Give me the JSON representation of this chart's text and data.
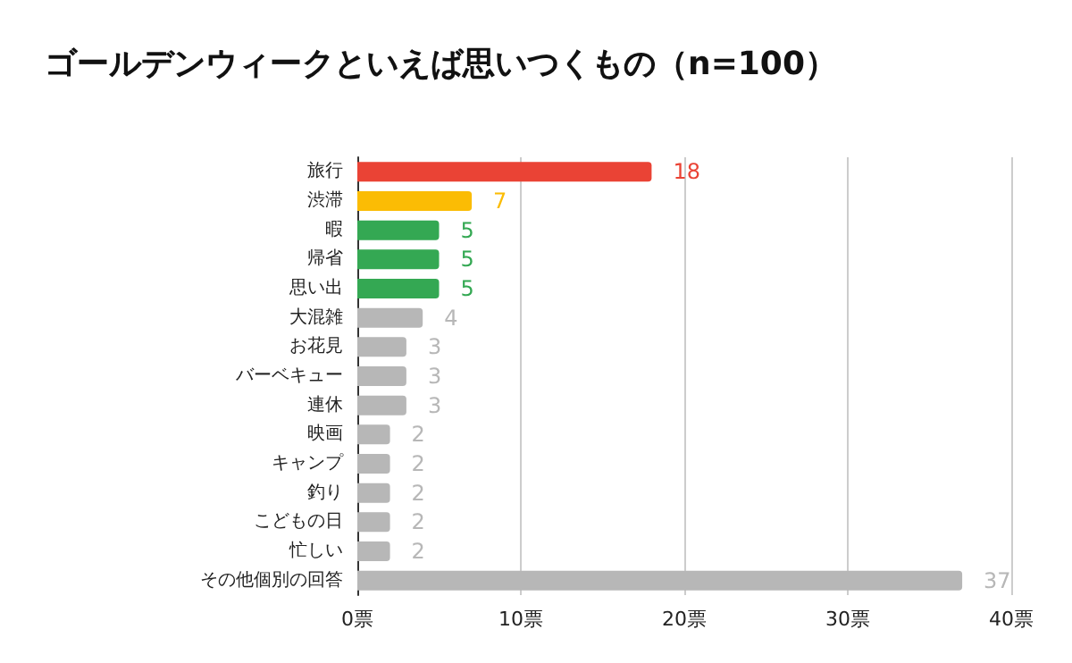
{
  "chart_data": {
    "type": "bar",
    "orientation": "horizontal",
    "title": "ゴールデンウィークといえば思いつくもの（n=100）",
    "categories": [
      "旅行",
      "渋滞",
      "暇",
      "帰省",
      "思い出",
      "大混雑",
      "お花見",
      "バーベキュー",
      "連休",
      "映画",
      "キャンプ",
      "釣り",
      "こどもの日",
      "忙しい",
      "その他個別の回答"
    ],
    "values": [
      18,
      7,
      5,
      5,
      5,
      4,
      3,
      3,
      3,
      2,
      2,
      2,
      2,
      2,
      37
    ],
    "colors": [
      "#ea4335",
      "#fbbc04",
      "#34a853",
      "#34a853",
      "#34a853",
      "#b7b7b7",
      "#b7b7b7",
      "#b7b7b7",
      "#b7b7b7",
      "#b7b7b7",
      "#b7b7b7",
      "#b7b7b7",
      "#b7b7b7",
      "#b7b7b7",
      "#b7b7b7"
    ],
    "xlim": [
      0,
      40
    ],
    "xticks": [
      {
        "value": 0,
        "label": "0票"
      },
      {
        "value": 10,
        "label": "10票"
      },
      {
        "value": 20,
        "label": "20票"
      },
      {
        "value": 30,
        "label": "30票"
      },
      {
        "value": 40,
        "label": "40票"
      }
    ],
    "grid": "x",
    "data_labels": true
  }
}
